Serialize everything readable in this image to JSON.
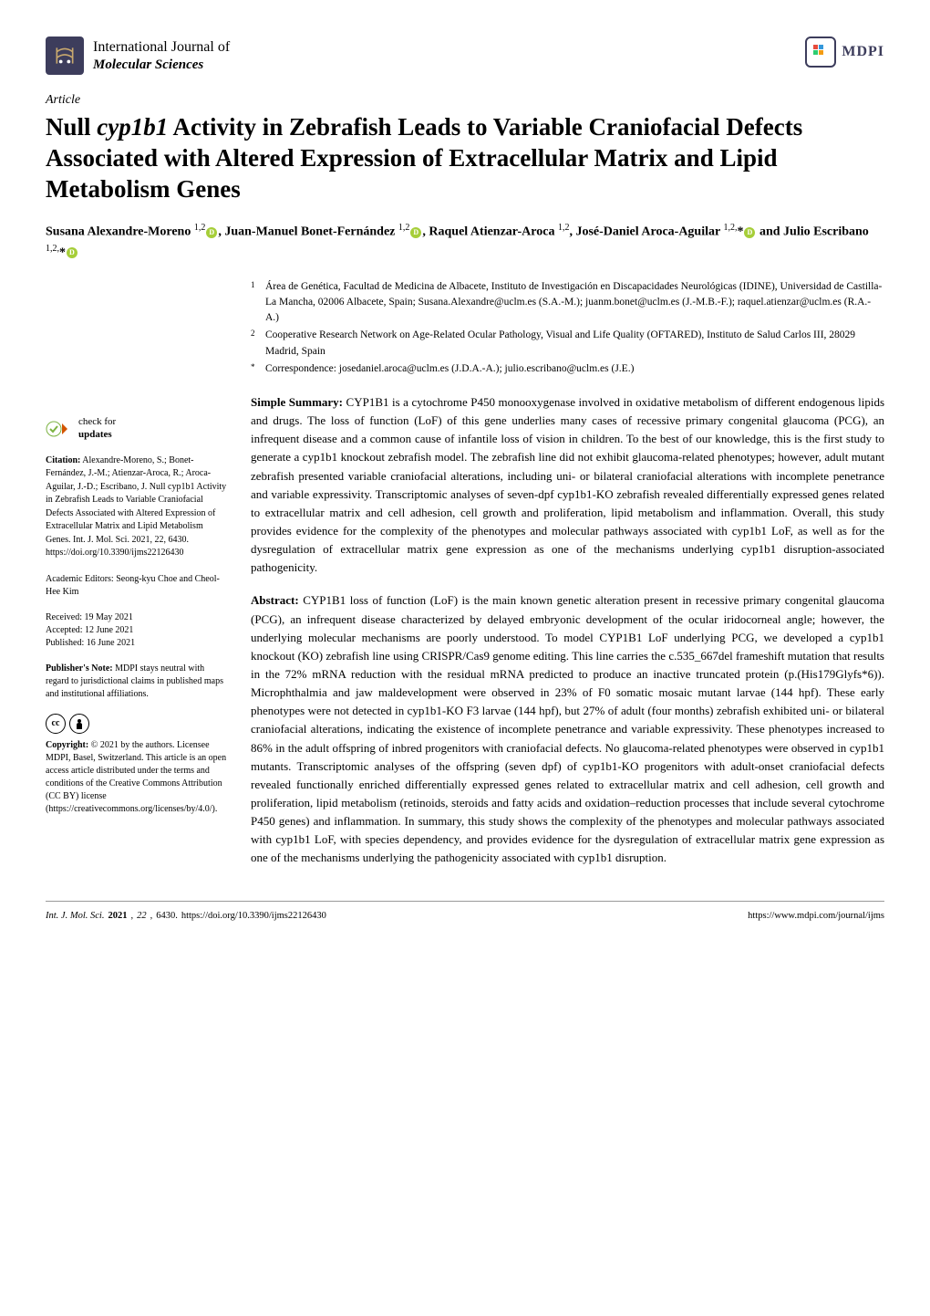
{
  "header": {
    "journal_name_line1": "International Journal of",
    "journal_name_line2": "Molecular Sciences",
    "publisher": "MDPI"
  },
  "article": {
    "type": "Article",
    "title": "Null cyp1b1 Activity in Zebrafish Leads to Variable Craniofacial Defects Associated with Altered Expression of Extracellular Matrix and Lipid Metabolism Genes",
    "authors_html": "Susana Alexandre-Moreno <sup>1,2</sup><span class='orcid-icon'></span>, Juan-Manuel Bonet-Fernández <sup>1,2</sup><span class='orcid-icon'></span>, Raquel Atienzar-Aroca <sup>1,2</sup>, José-Daniel Aroca-Aguilar <sup>1,2,</sup>*<span class='orcid-icon'></span> and Julio Escribano <sup>1,2,</sup>*<span class='orcid-icon'></span>"
  },
  "affiliations": {
    "items": [
      {
        "num": "1",
        "text": "Área de Genética, Facultad de Medicina de Albacete, Instituto de Investigación en Discapacidades Neurológicas (IDINE), Universidad de Castilla-La Mancha, 02006 Albacete, Spain; Susana.Alexandre@uclm.es (S.A.-M.); juanm.bonet@uclm.es (J.-M.B.-F.); raquel.atienzar@uclm.es (R.A.-A.)"
      },
      {
        "num": "2",
        "text": "Cooperative Research Network on Age-Related Ocular Pathology, Visual and Life Quality (OFTARED), Instituto de Salud Carlos III, 28029 Madrid, Spain"
      }
    ],
    "correspondence": "Correspondence: josedaniel.aroca@uclm.es (J.D.A.-A.); julio.escribano@uclm.es (J.E.)"
  },
  "simple_summary": {
    "label": "Simple Summary:",
    "text": "CYP1B1 is a cytochrome P450 monooxygenase involved in oxidative metabolism of different endogenous lipids and drugs. The loss of function (LoF) of this gene underlies many cases of recessive primary congenital glaucoma (PCG), an infrequent disease and a common cause of infantile loss of vision in children. To the best of our knowledge, this is the first study to generate a cyp1b1 knockout zebrafish model. The zebrafish line did not exhibit glaucoma-related phenotypes; however, adult mutant zebrafish presented variable craniofacial alterations, including uni- or bilateral craniofacial alterations with incomplete penetrance and variable expressivity. Transcriptomic analyses of seven-dpf cyp1b1-KO zebrafish revealed differentially expressed genes related to extracellular matrix and cell adhesion, cell growth and proliferation, lipid metabolism and inflammation. Overall, this study provides evidence for the complexity of the phenotypes and molecular pathways associated with cyp1b1 LoF, as well as for the dysregulation of extracellular matrix gene expression as one of the mechanisms underlying cyp1b1 disruption-associated pathogenicity."
  },
  "abstract": {
    "label": "Abstract:",
    "text": "CYP1B1 loss of function (LoF) is the main known genetic alteration present in recessive primary congenital glaucoma (PCG), an infrequent disease characterized by delayed embryonic development of the ocular iridocorneal angle; however, the underlying molecular mechanisms are poorly understood. To model CYP1B1 LoF underlying PCG, we developed a cyp1b1 knockout (KO) zebrafish line using CRISPR/Cas9 genome editing. This line carries the c.535_667del frameshift mutation that results in the 72% mRNA reduction with the residual mRNA predicted to produce an inactive truncated protein (p.(His179Glyfs*6)). Microphthalmia and jaw maldevelopment were observed in 23% of F0 somatic mosaic mutant larvae (144 hpf). These early phenotypes were not detected in cyp1b1-KO F3 larvae (144 hpf), but 27% of adult (four months) zebrafish exhibited uni- or bilateral craniofacial alterations, indicating the existence of incomplete penetrance and variable expressivity. These phenotypes increased to 86% in the adult offspring of inbred progenitors with craniofacial defects. No glaucoma-related phenotypes were observed in cyp1b1 mutants. Transcriptomic analyses of the offspring (seven dpf) of cyp1b1-KO progenitors with adult-onset craniofacial defects revealed functionally enriched differentially expressed genes related to extracellular matrix and cell adhesion, cell growth and proliferation, lipid metabolism (retinoids, steroids and fatty acids and oxidation–reduction processes that include several cytochrome P450 genes) and inflammation. In summary, this study shows the complexity of the phenotypes and molecular pathways associated with cyp1b1 LoF, with species dependency, and provides evidence for the dysregulation of extracellular matrix gene expression as one of the mechanisms underlying the pathogenicity associated with cyp1b1 disruption."
  },
  "sidebar": {
    "check_updates_line1": "check for",
    "check_updates_line2": "updates",
    "citation_label": "Citation:",
    "citation_text": "Alexandre-Moreno, S.; Bonet-Fernández, J.-M.; Atienzar-Aroca, R.; Aroca-Aguilar, J.-D.; Escribano, J. Null cyp1b1 Activity in Zebrafish Leads to Variable Craniofacial Defects Associated with Altered Expression of Extracellular Matrix and Lipid Metabolism Genes. Int. J. Mol. Sci. 2021, 22, 6430. https://doi.org/10.3390/ijms22126430",
    "editors_label": "Academic Editors:",
    "editors_text": "Seong-kyu Choe and Cheol-Hee Kim",
    "received_label": "Received:",
    "received_date": "19 May 2021",
    "accepted_label": "Accepted:",
    "accepted_date": "12 June 2021",
    "published_label": "Published:",
    "published_date": "16 June 2021",
    "publisher_note_label": "Publisher's Note:",
    "publisher_note_text": "MDPI stays neutral with regard to jurisdictional claims in published maps and institutional affiliations.",
    "copyright_label": "Copyright:",
    "copyright_text": "© 2021 by the authors. Licensee MDPI, Basel, Switzerland. This article is an open access article distributed under the terms and conditions of the Creative Commons Attribution (CC BY) license (https://creativecommons.org/licenses/by/4.0/)."
  },
  "footer": {
    "journal_abbrev": "Int. J. Mol. Sci.",
    "year": "2021",
    "volume": "22",
    "article_num": "6430.",
    "doi": "https://doi.org/10.3390/ijms22126430",
    "url": "https://www.mdpi.com/journal/ijms"
  },
  "colors": {
    "brand_dark": "#3d3d5c",
    "orcid_green": "#a6ce39",
    "text": "#000000",
    "bg": "#ffffff"
  },
  "typography": {
    "title_fontsize": 27,
    "body_fontsize": 13,
    "sidebar_fontsize": 10,
    "footer_fontsize": 10.5
  }
}
